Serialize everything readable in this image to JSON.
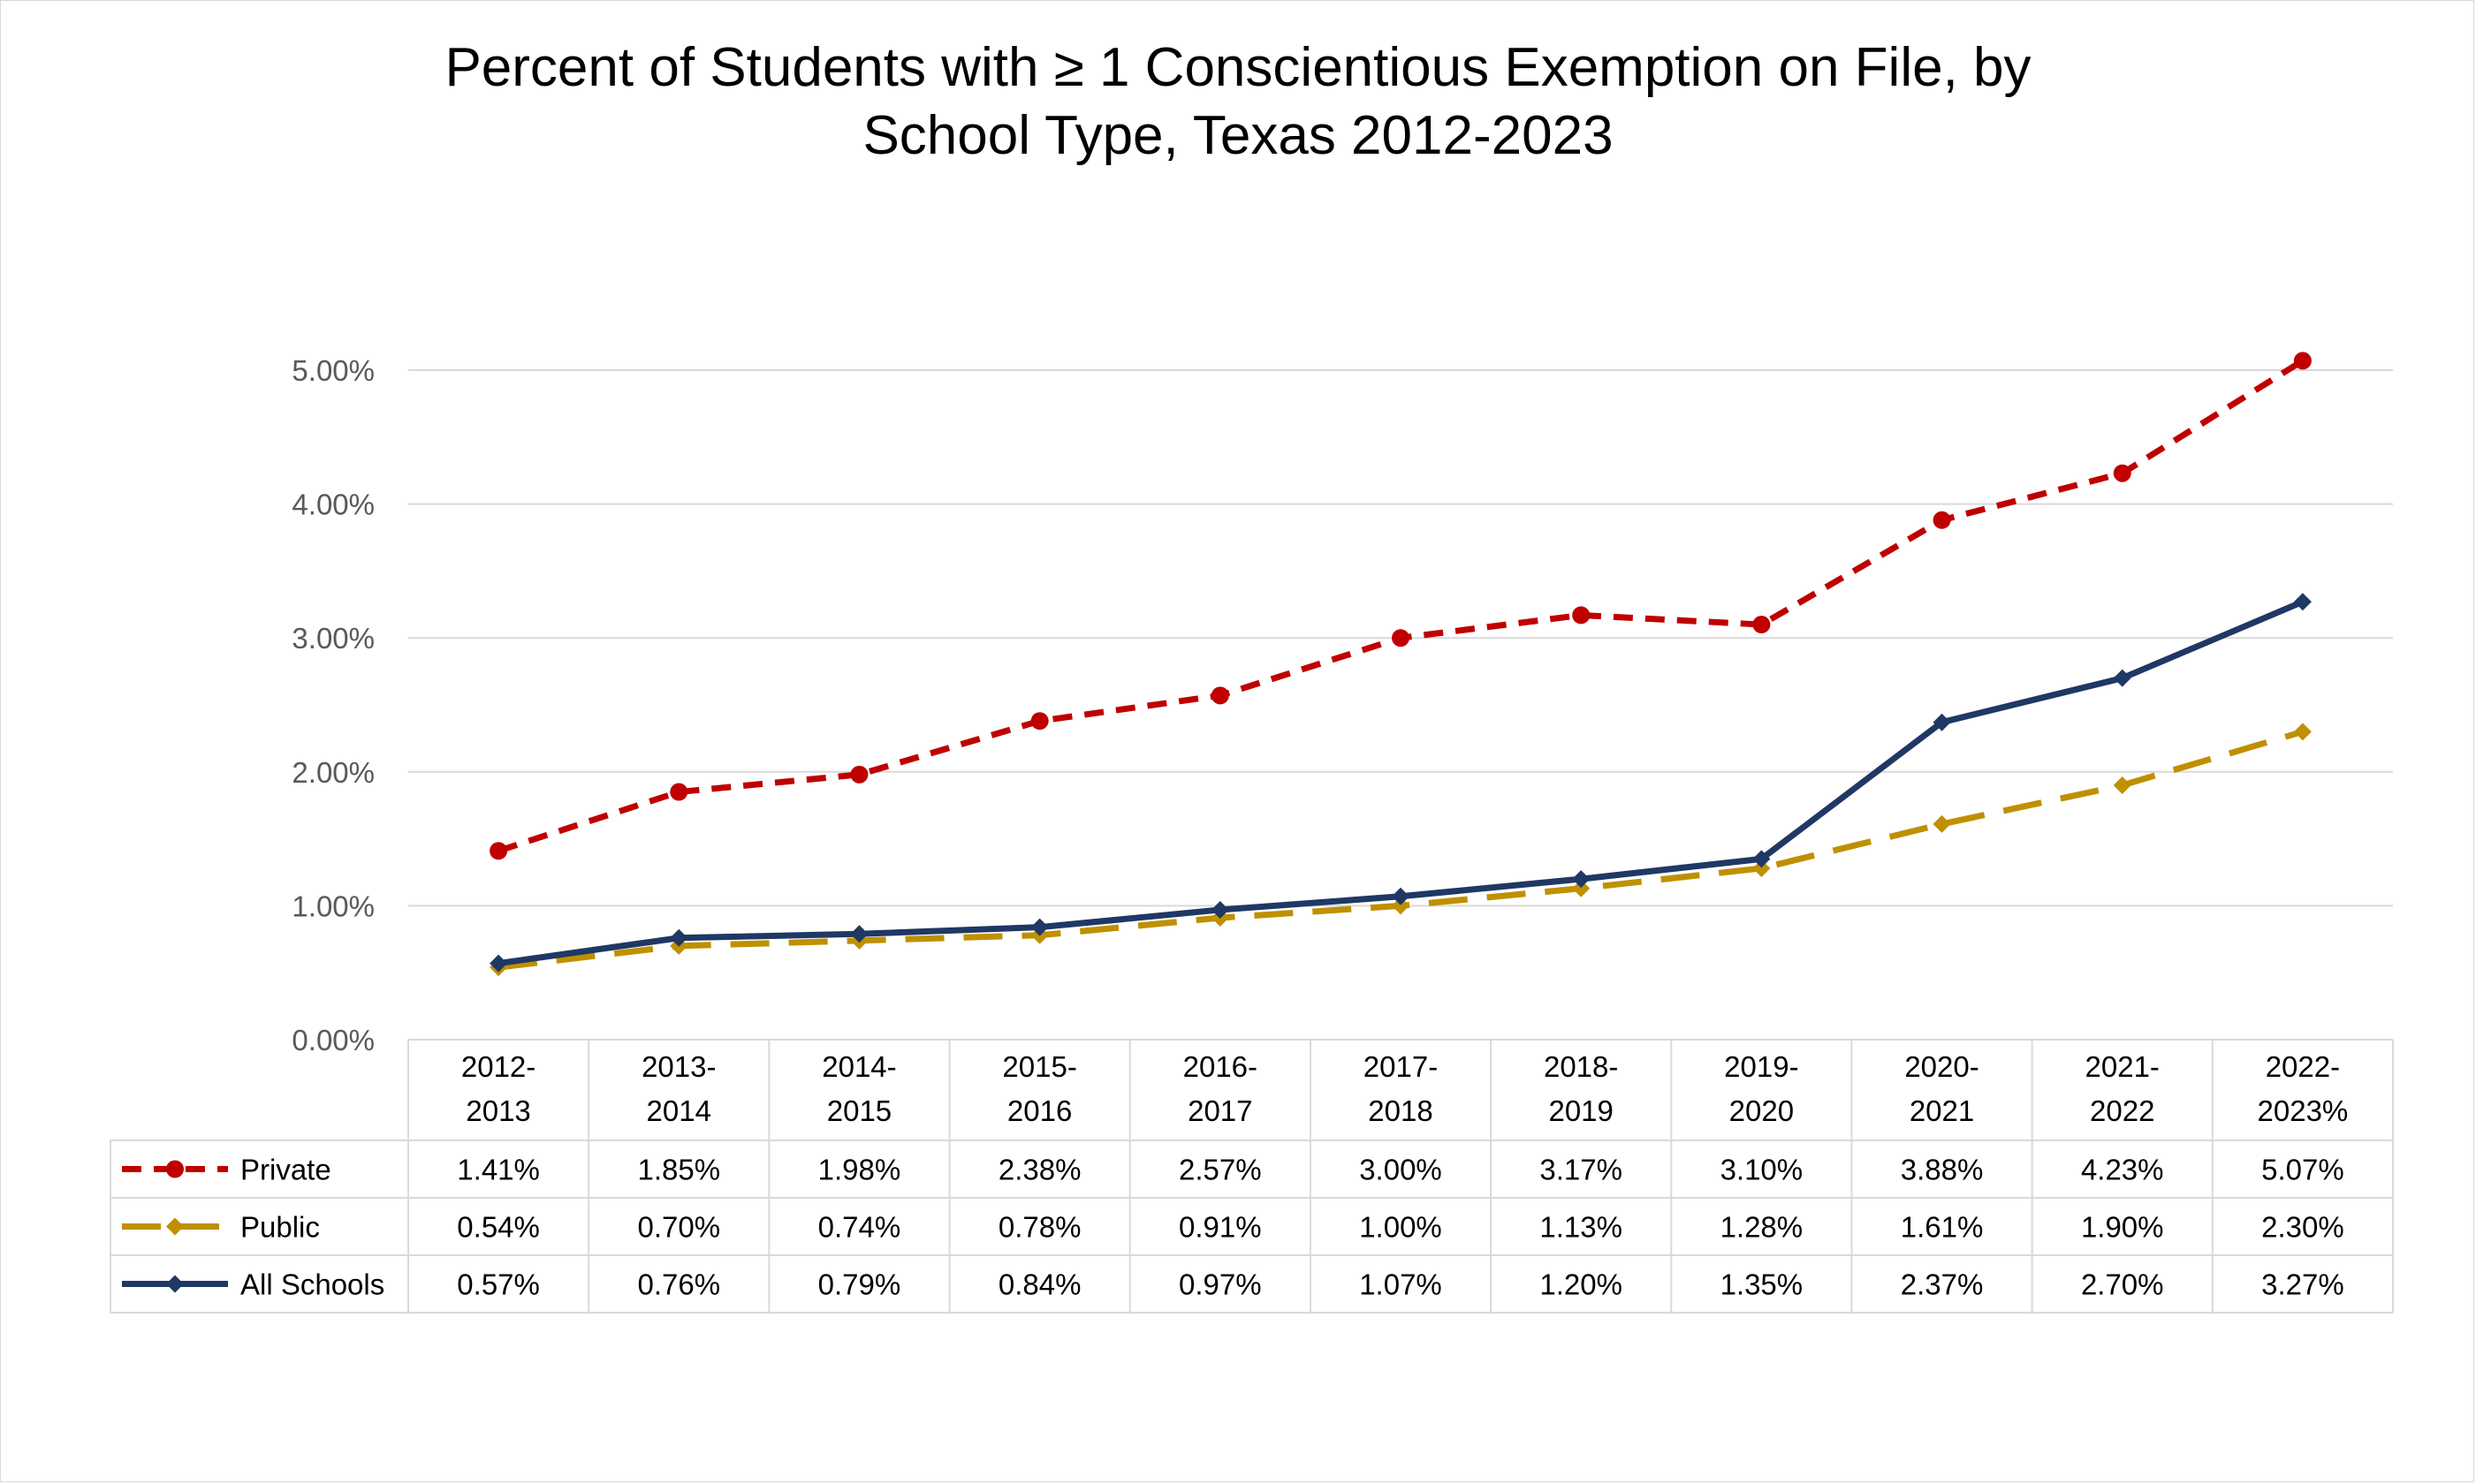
{
  "chart_data": {
    "type": "line",
    "title_lines": [
      "Percent of Students with ≥ 1 Conscientious Exemption on File, by",
      "School Type, Texas 2012-2023"
    ],
    "categories": [
      [
        "2012-",
        "2013"
      ],
      [
        "2013-",
        "2014"
      ],
      [
        "2014-",
        "2015"
      ],
      [
        "2015-",
        "2016"
      ],
      [
        "2016-",
        "2017"
      ],
      [
        "2017-",
        "2018"
      ],
      [
        "2018-",
        "2019"
      ],
      [
        "2019-",
        "2020"
      ],
      [
        "2020-",
        "2021"
      ],
      [
        "2021-",
        "2022"
      ],
      [
        "2022-",
        "2023%"
      ]
    ],
    "ylim": [
      0,
      5.5
    ],
    "yticks": [
      {
        "value": 0,
        "label": "0.00%"
      },
      {
        "value": 1,
        "label": "1.00%"
      },
      {
        "value": 2,
        "label": "2.00%"
      },
      {
        "value": 3,
        "label": "3.00%"
      },
      {
        "value": 4,
        "label": "4.00%"
      },
      {
        "value": 5,
        "label": "5.00%"
      }
    ],
    "grid": true,
    "legend": "data-table",
    "series": [
      {
        "name": "Private",
        "color": "#c00000",
        "line_style": "dashed",
        "marker": "circle",
        "values": [
          1.41,
          1.85,
          1.98,
          2.38,
          2.57,
          3.0,
          3.17,
          3.1,
          3.88,
          4.23,
          5.07
        ],
        "labels": [
          "1.41%",
          "1.85%",
          "1.98%",
          "2.38%",
          "2.57%",
          "3.00%",
          "3.17%",
          "3.10%",
          "3.88%",
          "4.23%",
          "5.07%"
        ]
      },
      {
        "name": "Public",
        "color": "#bf9000",
        "line_style": "long-dash",
        "marker": "diamond",
        "values": [
          0.54,
          0.7,
          0.74,
          0.78,
          0.91,
          1.0,
          1.13,
          1.28,
          1.61,
          1.9,
          2.3
        ],
        "labels": [
          "0.54%",
          "0.70%",
          "0.74%",
          "0.78%",
          "0.91%",
          "1.00%",
          "1.13%",
          "1.28%",
          "1.61%",
          "1.90%",
          "2.30%"
        ]
      },
      {
        "name": "All Schools",
        "color": "#1f3864",
        "line_style": "solid",
        "marker": "diamond",
        "values": [
          0.57,
          0.76,
          0.79,
          0.84,
          0.97,
          1.07,
          1.2,
          1.35,
          2.37,
          2.7,
          3.27
        ],
        "labels": [
          "0.57%",
          "0.76%",
          "0.79%",
          "0.84%",
          "0.97%",
          "1.07%",
          "1.20%",
          "1.35%",
          "2.37%",
          "2.70%",
          "3.27%"
        ]
      }
    ]
  }
}
